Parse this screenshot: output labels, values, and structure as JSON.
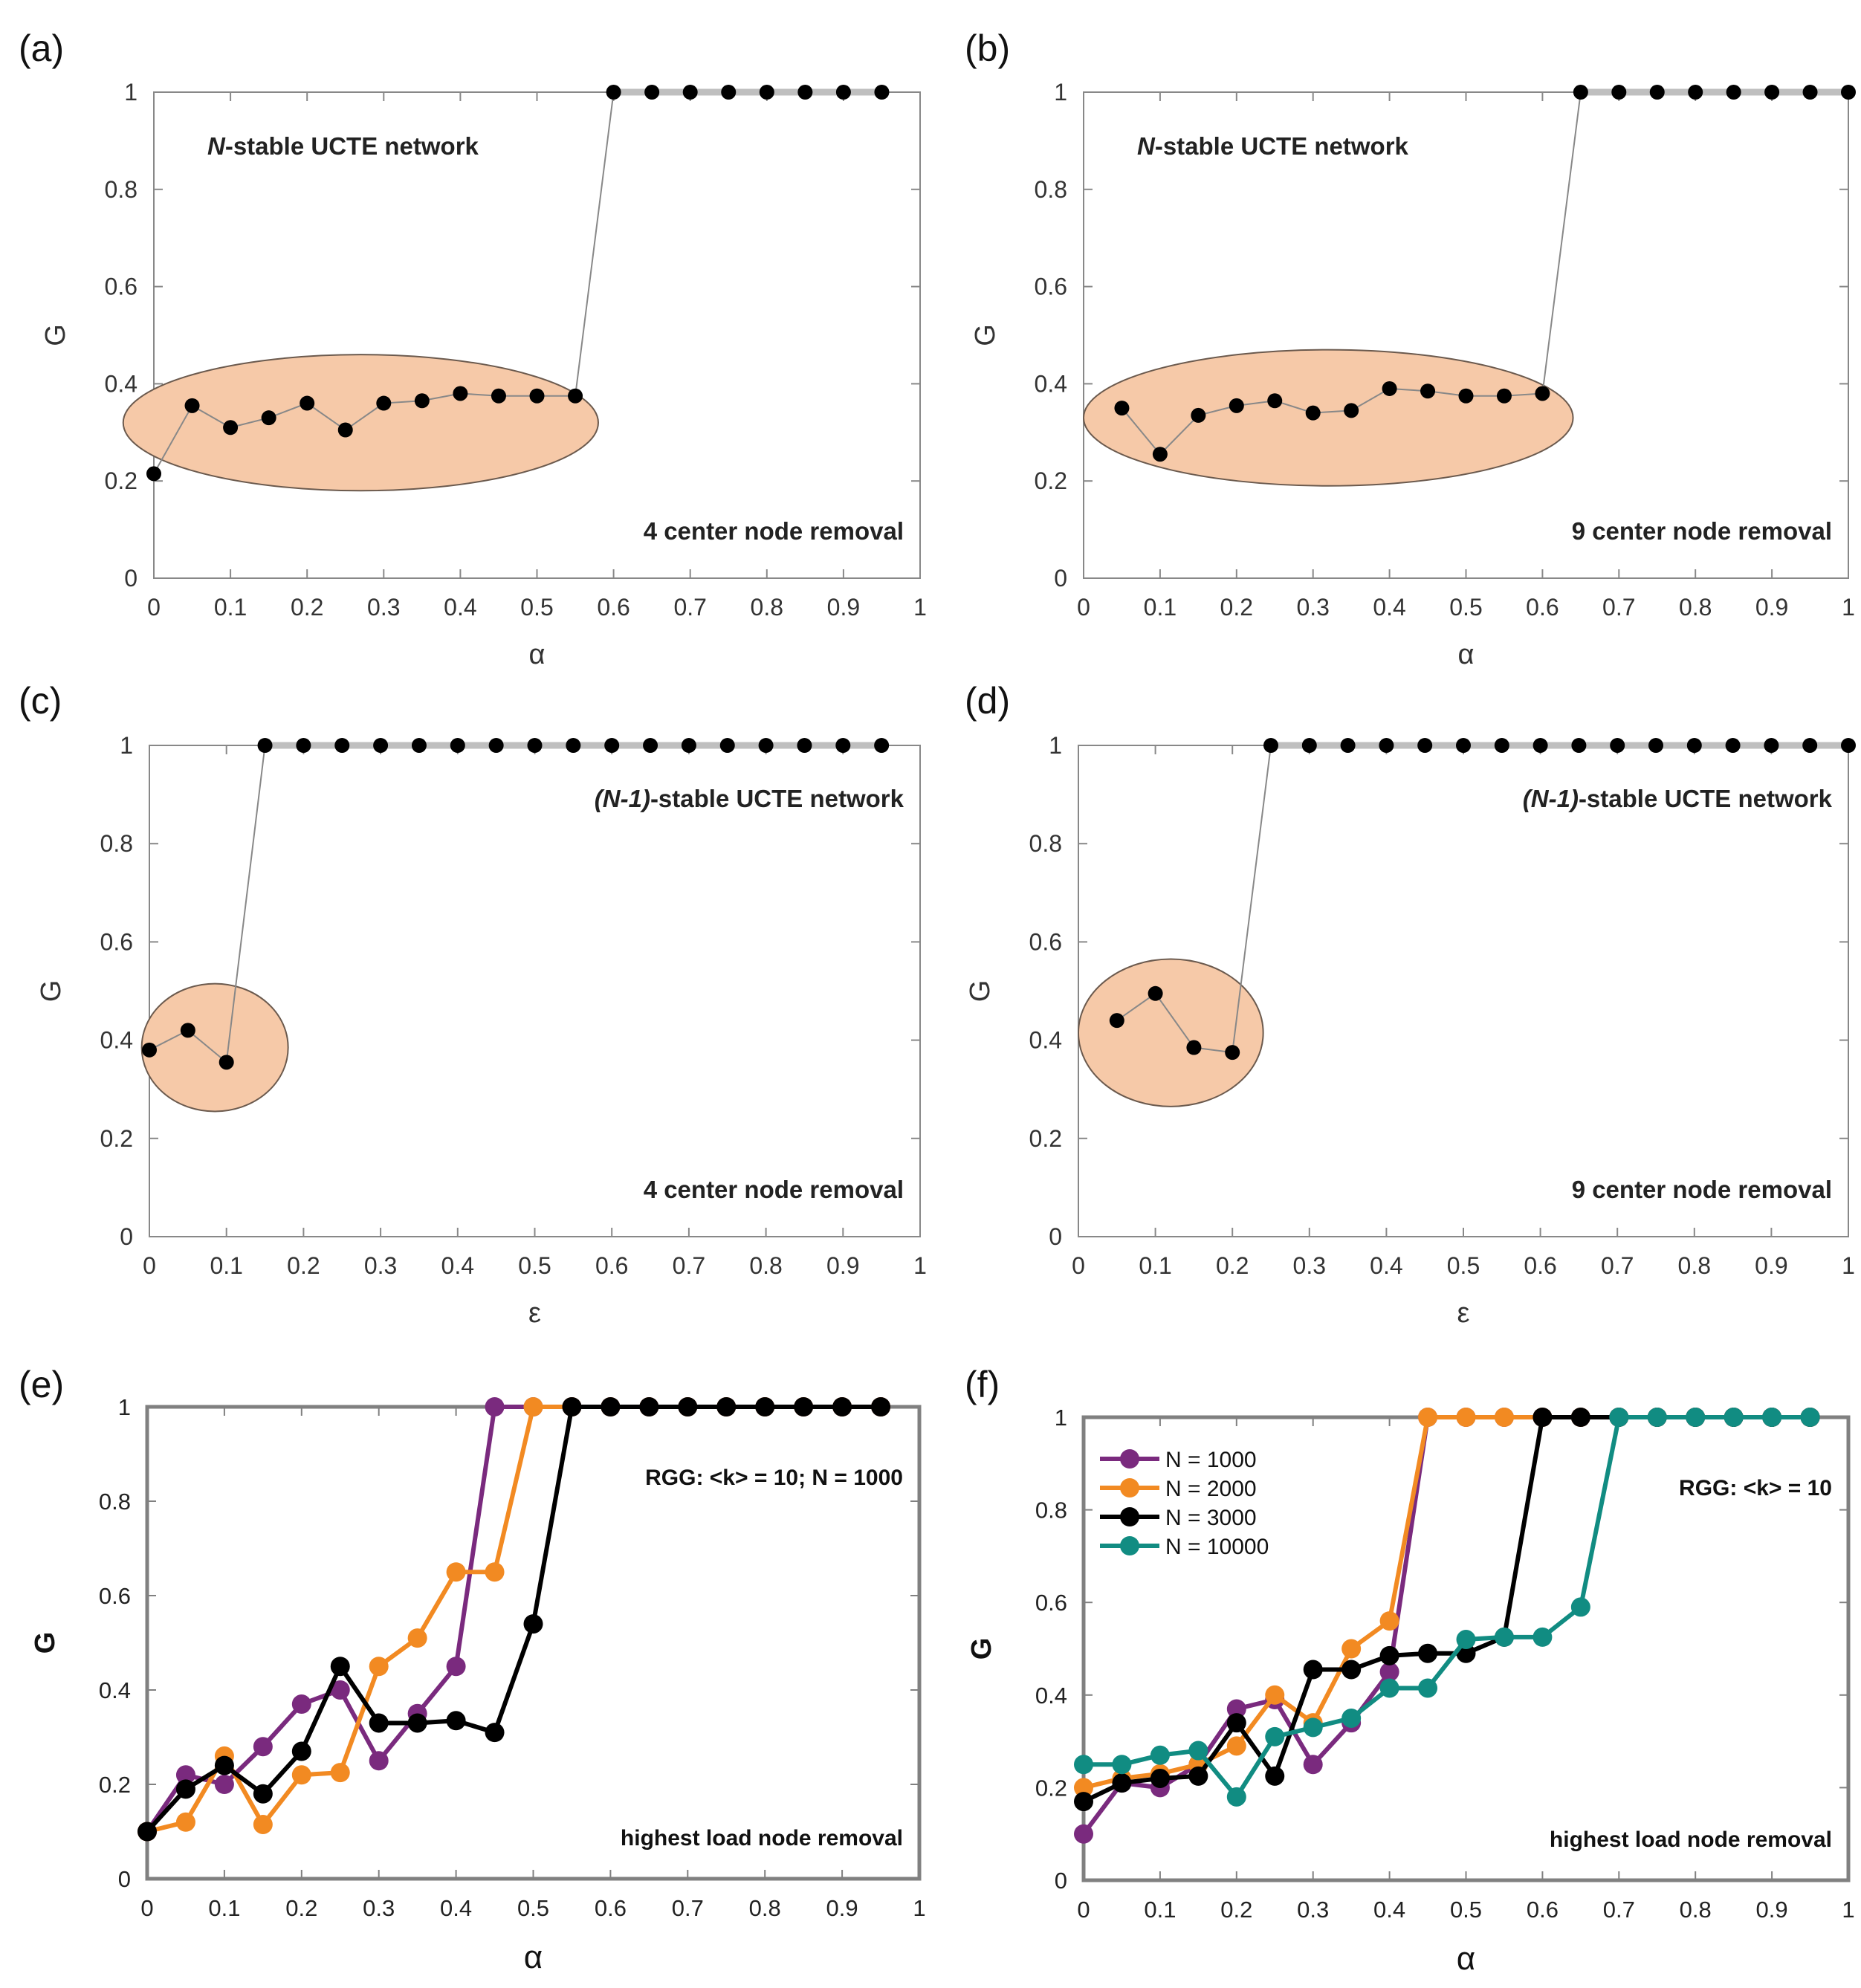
{
  "panel_labels": [
    "(a)",
    "(b)",
    "(c)",
    "(d)",
    "(e)",
    "(f)"
  ],
  "colors": {
    "ellipse_fill": "#f6c9a8",
    "ellipse_stroke": "#6b5a4e",
    "ucte_marker": "#000000",
    "ucte_line": "#888888",
    "frame": "#888888",
    "rgg_frame": "#808080",
    "purple": "#7a2a7e",
    "orange": "#f28a22",
    "black": "#000000",
    "teal": "#118c82"
  },
  "chart_data": [
    {
      "id": "a",
      "type": "line",
      "xlabel": "α",
      "ylabel": "G",
      "xlim": [
        0,
        1
      ],
      "ylim": [
        0,
        1
      ],
      "xticks": [
        "0",
        "0.1",
        "0.2",
        "0.3",
        "0.4",
        "0.5",
        "0.6",
        "0.7",
        "0.8",
        "0.9",
        "1"
      ],
      "yticks": [
        "0",
        "0.2",
        "0.4",
        "0.6",
        "0.8",
        "1"
      ],
      "annotation_prefix": "N",
      "annotation_rest": "-stable UCTE network",
      "annotation_bottom": "4 center node removal",
      "highlight": {
        "cx": 0.27,
        "cy": 0.32,
        "rx": 0.31,
        "ry": 0.14
      },
      "series": [
        {
          "name": "G",
          "x": [
            0,
            0.05,
            0.1,
            0.15,
            0.2,
            0.25,
            0.3,
            0.35,
            0.4,
            0.45,
            0.5,
            0.55,
            0.6,
            0.65,
            0.7,
            0.75,
            0.8,
            0.85,
            0.9,
            0.95
          ],
          "y": [
            0.215,
            0.355,
            0.31,
            0.33,
            0.36,
            0.305,
            0.36,
            0.365,
            0.38,
            0.375,
            0.375,
            0.375,
            1,
            1,
            1,
            1,
            1,
            1,
            1,
            1
          ]
        }
      ]
    },
    {
      "id": "b",
      "type": "line",
      "xlabel": "α",
      "ylabel": "G",
      "xlim": [
        0,
        1
      ],
      "ylim": [
        0,
        1
      ],
      "xticks": [
        "0",
        "0.1",
        "0.2",
        "0.3",
        "0.4",
        "0.5",
        "0.6",
        "0.7",
        "0.8",
        "0.9",
        "1"
      ],
      "yticks": [
        "0",
        "0.2",
        "0.4",
        "0.6",
        "0.8",
        "1"
      ],
      "annotation_prefix": "N",
      "annotation_rest": "-stable UCTE network",
      "annotation_bottom": "9 center node removal",
      "highlight": {
        "cx": 0.32,
        "cy": 0.33,
        "rx": 0.32,
        "ry": 0.14
      },
      "series": [
        {
          "name": "G",
          "x": [
            0.05,
            0.1,
            0.15,
            0.2,
            0.25,
            0.3,
            0.35,
            0.4,
            0.45,
            0.5,
            0.55,
            0.6,
            0.65,
            0.7,
            0.75,
            0.8,
            0.85,
            0.9,
            0.95,
            1
          ],
          "y": [
            0.35,
            0.255,
            0.335,
            0.355,
            0.365,
            0.34,
            0.345,
            0.39,
            0.385,
            0.375,
            0.375,
            0.38,
            1,
            1,
            1,
            1,
            1,
            1,
            1,
            1
          ]
        }
      ]
    },
    {
      "id": "c",
      "type": "line",
      "xlabel": "ε",
      "ylabel": "G",
      "xlim": [
        0,
        1
      ],
      "ylim": [
        0,
        1
      ],
      "xticks": [
        "0",
        "0.1",
        "0.2",
        "0.3",
        "0.4",
        "0.5",
        "0.6",
        "0.7",
        "0.8",
        "0.9",
        "1"
      ],
      "yticks": [
        "0",
        "0.2",
        "0.4",
        "0.6",
        "0.8",
        "1"
      ],
      "annotation_prefix": "(N-1)",
      "annotation_rest": "-stable UCTE network",
      "annotation_bottom": "4 center node removal",
      "highlight": {
        "cx": 0.085,
        "cy": 0.385,
        "rx": 0.095,
        "ry": 0.13
      },
      "series": [
        {
          "name": "G",
          "x": [
            0,
            0.05,
            0.1,
            0.15,
            0.2,
            0.25,
            0.3,
            0.35,
            0.4,
            0.45,
            0.5,
            0.55,
            0.6,
            0.65,
            0.7,
            0.75,
            0.8,
            0.85,
            0.9,
            0.95
          ],
          "y": [
            0.38,
            0.42,
            0.355,
            1,
            1,
            1,
            1,
            1,
            1,
            1,
            1,
            1,
            1,
            1,
            1,
            1,
            1,
            1,
            1,
            1
          ]
        }
      ]
    },
    {
      "id": "d",
      "type": "line",
      "xlabel": "ε",
      "ylabel": "G",
      "xlim": [
        0,
        1
      ],
      "ylim": [
        0,
        1
      ],
      "xticks": [
        "0",
        "0.1",
        "0.2",
        "0.3",
        "0.4",
        "0.5",
        "0.6",
        "0.7",
        "0.8",
        "0.9",
        "1"
      ],
      "yticks": [
        "0",
        "0.2",
        "0.4",
        "0.6",
        "0.8",
        "1"
      ],
      "annotation_prefix": "(N-1)",
      "annotation_rest": "-stable UCTE network",
      "annotation_bottom": "9 center node removal",
      "highlight": {
        "cx": 0.12,
        "cy": 0.415,
        "rx": 0.12,
        "ry": 0.15
      },
      "series": [
        {
          "name": "G",
          "x": [
            0.05,
            0.1,
            0.15,
            0.2,
            0.25,
            0.3,
            0.35,
            0.4,
            0.45,
            0.5,
            0.55,
            0.6,
            0.65,
            0.7,
            0.75,
            0.8,
            0.85,
            0.9,
            0.95,
            1
          ],
          "y": [
            0.44,
            0.495,
            0.385,
            0.375,
            1,
            1,
            1,
            1,
            1,
            1,
            1,
            1,
            1,
            1,
            1,
            1,
            1,
            1,
            1,
            1
          ]
        }
      ]
    },
    {
      "id": "e",
      "type": "line",
      "xlabel": "α",
      "ylabel": "G",
      "xlim": [
        0,
        1
      ],
      "ylim": [
        0,
        1
      ],
      "xticks": [
        "0",
        "0.1",
        "0.2",
        "0.3",
        "0.4",
        "0.5",
        "0.6",
        "0.7",
        "0.8",
        "0.9",
        "1"
      ],
      "yticks": [
        "0",
        "0.2",
        "0.4",
        "0.6",
        "0.8",
        "1"
      ],
      "annotation_rgg": "RGG: <k> = 10; N = 1000",
      "annotation_bottom": "highest load node removal",
      "series": [
        {
          "name": "purple",
          "color_key": "purple",
          "x": [
            0,
            0.05,
            0.1,
            0.15,
            0.2,
            0.25,
            0.3,
            0.35,
            0.4,
            0.45,
            0.5,
            0.55,
            0.6,
            0.65,
            0.7,
            0.75,
            0.8,
            0.85,
            0.9,
            0.95
          ],
          "y": [
            0.1,
            0.22,
            0.2,
            0.28,
            0.37,
            0.4,
            0.25,
            0.35,
            0.45,
            1,
            1,
            1,
            1,
            1,
            1,
            1,
            1,
            1,
            1,
            1
          ]
        },
        {
          "name": "orange",
          "color_key": "orange",
          "x": [
            0,
            0.05,
            0.1,
            0.15,
            0.2,
            0.25,
            0.3,
            0.35,
            0.4,
            0.45,
            0.5,
            0.55,
            0.6,
            0.65,
            0.7,
            0.75,
            0.8,
            0.85,
            0.9,
            0.95
          ],
          "y": [
            0.1,
            0.12,
            0.26,
            0.115,
            0.22,
            0.225,
            0.45,
            0.51,
            0.65,
            0.65,
            1,
            1,
            1,
            1,
            1,
            1,
            1,
            1,
            1,
            1
          ]
        },
        {
          "name": "black",
          "color_key": "black",
          "x": [
            0,
            0.05,
            0.1,
            0.15,
            0.2,
            0.25,
            0.3,
            0.35,
            0.4,
            0.45,
            0.5,
            0.55,
            0.6,
            0.65,
            0.7,
            0.75,
            0.8,
            0.85,
            0.9,
            0.95
          ],
          "y": [
            0.1,
            0.19,
            0.24,
            0.18,
            0.27,
            0.45,
            0.33,
            0.33,
            0.335,
            0.31,
            0.54,
            1,
            1,
            1,
            1,
            1,
            1,
            1,
            1,
            1
          ]
        }
      ]
    },
    {
      "id": "f",
      "type": "line",
      "xlabel": "α",
      "ylabel": "G",
      "xlim": [
        0,
        1
      ],
      "ylim": [
        0,
        1
      ],
      "xticks": [
        "0",
        "0.1",
        "0.2",
        "0.3",
        "0.4",
        "0.5",
        "0.6",
        "0.7",
        "0.8",
        "0.9",
        "1"
      ],
      "yticks": [
        "0",
        "0.2",
        "0.4",
        "0.6",
        "0.8",
        "1"
      ],
      "annotation_rgg": "RGG: <k> = 10",
      "annotation_bottom": "highest load node removal",
      "legend": [
        "N =   1000",
        "N =   2000",
        "N =   3000",
        "N = 10000"
      ],
      "series": [
        {
          "name": "N = 1000",
          "color_key": "purple",
          "x": [
            0,
            0.05,
            0.1,
            0.15,
            0.2,
            0.25,
            0.3,
            0.35,
            0.4,
            0.45,
            0.5,
            0.55,
            0.6,
            0.65,
            0.7,
            0.75,
            0.8,
            0.85,
            0.9,
            0.95
          ],
          "y": [
            0.1,
            0.21,
            0.2,
            0.25,
            0.37,
            0.39,
            0.25,
            0.34,
            0.45,
            1,
            1,
            1,
            1,
            1,
            1,
            1,
            1,
            1,
            1,
            1
          ]
        },
        {
          "name": "N = 2000",
          "color_key": "orange",
          "x": [
            0,
            0.05,
            0.1,
            0.15,
            0.2,
            0.25,
            0.3,
            0.35,
            0.4,
            0.45,
            0.5,
            0.55,
            0.6,
            0.65,
            0.7,
            0.75,
            0.8,
            0.85,
            0.9,
            0.95
          ],
          "y": [
            0.2,
            0.22,
            0.23,
            0.25,
            0.29,
            0.4,
            0.34,
            0.5,
            0.56,
            1,
            1,
            1,
            1,
            1,
            1,
            1,
            1,
            1,
            1,
            1
          ]
        },
        {
          "name": "N = 3000",
          "color_key": "black",
          "x": [
            0,
            0.05,
            0.1,
            0.15,
            0.2,
            0.25,
            0.3,
            0.35,
            0.4,
            0.45,
            0.5,
            0.55,
            0.6,
            0.65,
            0.7,
            0.75,
            0.8,
            0.85,
            0.9,
            0.95
          ],
          "y": [
            0.17,
            0.21,
            0.22,
            0.225,
            0.34,
            0.225,
            0.455,
            0.455,
            0.485,
            0.49,
            0.49,
            0.525,
            1,
            1,
            1,
            1,
            1,
            1,
            1,
            1
          ]
        },
        {
          "name": "N = 10000",
          "color_key": "teal",
          "x": [
            0,
            0.05,
            0.1,
            0.15,
            0.2,
            0.25,
            0.3,
            0.35,
            0.4,
            0.45,
            0.5,
            0.55,
            0.6,
            0.65,
            0.7,
            0.75,
            0.8,
            0.85,
            0.9,
            0.95
          ],
          "y": [
            0.25,
            0.25,
            0.27,
            0.28,
            0.18,
            0.31,
            0.33,
            0.35,
            0.415,
            0.415,
            0.52,
            0.525,
            0.525,
            0.59,
            1,
            1,
            1,
            1,
            1,
            1
          ]
        }
      ]
    }
  ]
}
